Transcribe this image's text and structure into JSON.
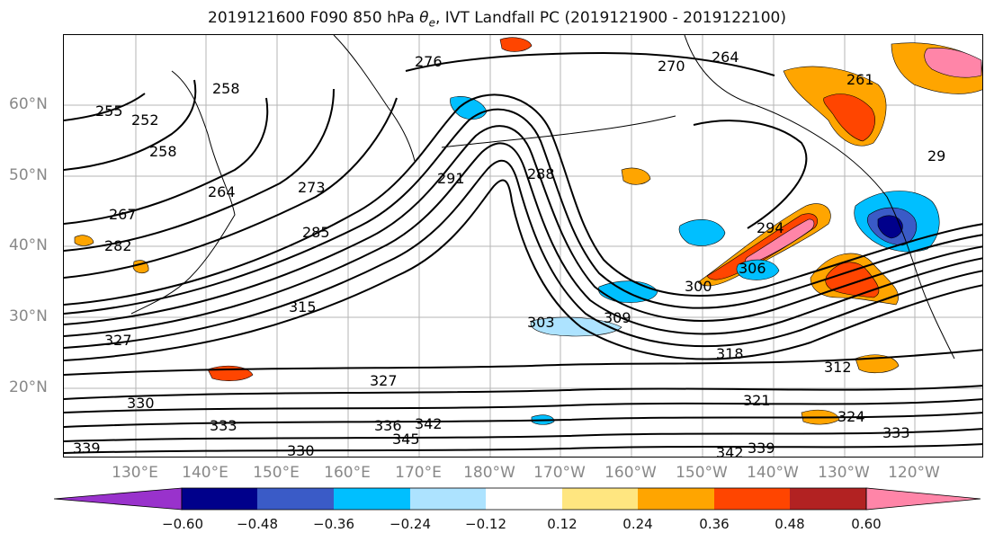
{
  "title_prefix": "2019121600 F090 850 hPa ",
  "title_theta": "θ",
  "title_theta_sub": "e",
  "title_suffix": ", IVT Landfall PC (2019121900 - 2019122100)",
  "lat_labels": [
    "60°N",
    "50°N",
    "40°N",
    "30°N",
    "20°N"
  ],
  "lon_labels": [
    "130°E",
    "140°E",
    "150°E",
    "160°E",
    "170°E",
    "180°W",
    "170°W",
    "160°W",
    "150°W",
    "140°W",
    "130°W",
    "120°W"
  ],
  "contour_labels": [
    "264",
    "276",
    "270",
    "258",
    "255",
    "252",
    "258",
    "291",
    "288",
    "264",
    "273",
    "267",
    "285",
    "282",
    "294",
    "306",
    "300",
    "261",
    "29",
    "315",
    "327",
    "303",
    "309",
    "318",
    "312",
    "327",
    "330",
    "321",
    "324",
    "333",
    "336",
    "342",
    "345",
    "339",
    "342",
    "330",
    "333",
    "339"
  ],
  "colorbar": {
    "colors": [
      "#9932CC",
      "#00008B",
      "#3A5BC7",
      "#00BFFF",
      "#ADE3FF",
      "#FFFFFF",
      "#FFE680",
      "#FFA500",
      "#FF4500",
      "#B22222",
      "#FF85A8"
    ],
    "tick_labels": [
      "−0.60",
      "−0.48",
      "−0.36",
      "−0.24",
      "−0.12",
      "0.12",
      "0.24",
      "0.36",
      "0.48",
      "0.60"
    ]
  }
}
